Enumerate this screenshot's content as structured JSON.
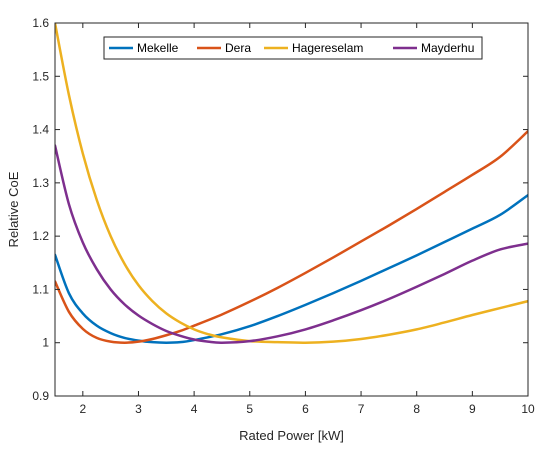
{
  "chart_data": {
    "type": "line",
    "title": "",
    "xlabel": "Rated Power [kW]",
    "ylabel": "Relative CoE",
    "xlim": [
      1.5,
      10
    ],
    "ylim": [
      0.9,
      1.6
    ],
    "xticks": [
      2,
      3,
      4,
      5,
      6,
      7,
      8,
      9,
      10
    ],
    "yticks": [
      0.9,
      1,
      1.1,
      1.2,
      1.3,
      1.4,
      1.5,
      1.6
    ],
    "xtick_labels": [
      "2",
      "3",
      "4",
      "5",
      "6",
      "7",
      "8",
      "9",
      "10"
    ],
    "ytick_labels": [
      "0.9",
      "1",
      "1.1",
      "1.2",
      "1.3",
      "1.4",
      "1.5",
      "1.6"
    ],
    "grid": false,
    "legend": {
      "placement": "top",
      "orientation": "horizontal"
    },
    "series": [
      {
        "name": "Mekelle",
        "color": "#0072BD",
        "x": [
          1.5,
          1.75,
          2,
          2.25,
          2.5,
          2.75,
          3,
          3.25,
          3.5,
          3.75,
          4,
          4.5,
          5,
          5.5,
          6,
          6.5,
          7,
          7.5,
          8,
          8.5,
          9,
          9.5,
          10
        ],
        "y": [
          1.165,
          1.093,
          1.055,
          1.032,
          1.018,
          1.009,
          1.004,
          1.001,
          1.0,
          1.001,
          1.005,
          1.016,
          1.031,
          1.05,
          1.071,
          1.093,
          1.116,
          1.14,
          1.164,
          1.189,
          1.214,
          1.24,
          1.277
        ]
      },
      {
        "name": "Dera",
        "color": "#D95319",
        "x": [
          1.5,
          1.75,
          2,
          2.25,
          2.5,
          2.75,
          3,
          3.25,
          3.5,
          3.75,
          4,
          4.5,
          5,
          5.5,
          6,
          6.5,
          7,
          7.5,
          8,
          8.5,
          9,
          9.5,
          10
        ],
        "y": [
          1.115,
          1.058,
          1.026,
          1.009,
          1.002,
          1.0,
          1.002,
          1.007,
          1.014,
          1.022,
          1.032,
          1.053,
          1.077,
          1.103,
          1.131,
          1.16,
          1.19,
          1.22,
          1.251,
          1.283,
          1.315,
          1.349,
          1.397
        ]
      },
      {
        "name": "Hagereselam",
        "color": "#EDB120",
        "x": [
          1.5,
          1.75,
          2,
          2.25,
          2.5,
          2.75,
          3,
          3.25,
          3.5,
          3.75,
          4,
          4.25,
          4.5,
          5,
          5.5,
          6,
          6.5,
          7,
          7.5,
          8,
          8.5,
          9,
          9.5,
          10
        ],
        "y": [
          1.6,
          1.465,
          1.355,
          1.268,
          1.2,
          1.148,
          1.108,
          1.078,
          1.055,
          1.038,
          1.025,
          1.016,
          1.01,
          1.003,
          1.001,
          1.0,
          1.002,
          1.007,
          1.015,
          1.025,
          1.038,
          1.052,
          1.065,
          1.078
        ]
      },
      {
        "name": "Mayderhu",
        "color": "#7E2F8E",
        "x": [
          1.5,
          1.75,
          2,
          2.25,
          2.5,
          2.75,
          3,
          3.25,
          3.5,
          3.75,
          4,
          4.25,
          4.5,
          5,
          5.5,
          6,
          6.5,
          7,
          7.5,
          8,
          8.5,
          9,
          9.5,
          10
        ],
        "y": [
          1.37,
          1.26,
          1.188,
          1.138,
          1.1,
          1.072,
          1.051,
          1.035,
          1.022,
          1.013,
          1.006,
          1.002,
          1.0,
          1.003,
          1.012,
          1.025,
          1.042,
          1.061,
          1.082,
          1.105,
          1.129,
          1.154,
          1.175,
          1.186
        ]
      }
    ]
  }
}
